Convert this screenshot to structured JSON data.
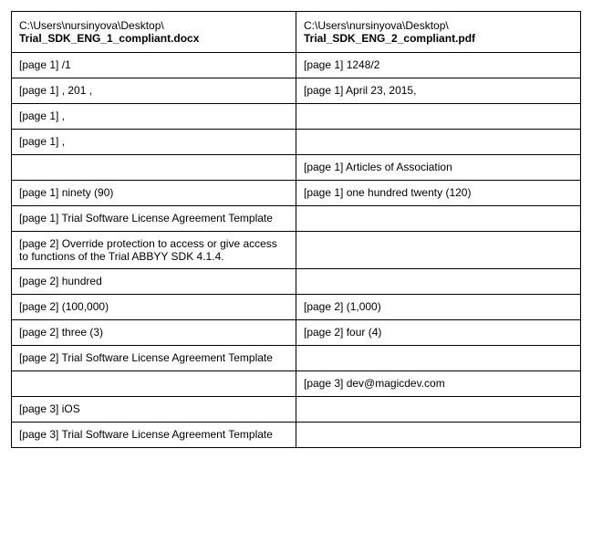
{
  "table": {
    "header": {
      "left": {
        "path": "C:\\Users\\nursinyova\\Desktop\\",
        "file": "Trial_SDK_ENG_1_compliant.docx"
      },
      "right": {
        "path": "C:\\Users\\nursinyova\\Desktop\\",
        "file": "Trial_SDK_ENG_2_compliant.pdf"
      }
    },
    "rows": [
      {
        "left": "[page 1] /1",
        "right": "[page 1] 1248/2"
      },
      {
        "left": "[page 1] , 201 ,",
        "right": "[page 1] April 23, 2015,"
      },
      {
        "left": "[page 1] ,",
        "right": ""
      },
      {
        "left": "[page 1] ,",
        "right": ""
      },
      {
        "left": "",
        "right": "[page 1] Articles of Association"
      },
      {
        "left": "[page 1] ninety (90)",
        "right": "[page 1] one hundred twenty (120)"
      },
      {
        "left": "[page 1] Trial Software License Agreement Template",
        "right": ""
      },
      {
        "left": "[page 2] Override protection to access or give access to functions of the Trial ABBYY SDK 4.1.4.",
        "right": ""
      },
      {
        "left": "[page 2] hundred",
        "right": ""
      },
      {
        "left": "[page 2] (100,000)",
        "right": "[page 2] (1,000)"
      },
      {
        "left": "[page 2] three (3)",
        "right": "[page 2] four (4)"
      },
      {
        "left": "[page 2] Trial Software License Agreement Template",
        "right": ""
      },
      {
        "left": "",
        "right": "[page 3] dev@magicdev.com"
      },
      {
        "left": "[page 3] iOS",
        "right": ""
      },
      {
        "left": "[page 3] Trial Software License Agreement Template",
        "right": ""
      }
    ]
  }
}
